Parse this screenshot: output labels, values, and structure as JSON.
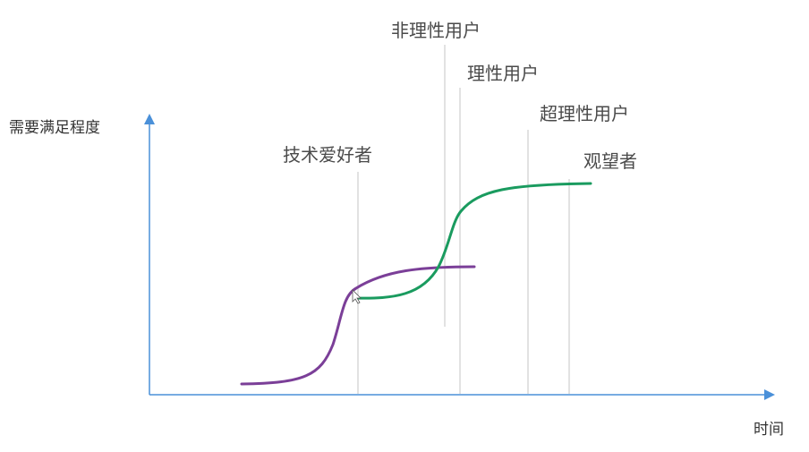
{
  "axes": {
    "y_label": "需要满足程度",
    "x_label": "时间"
  },
  "segments": [
    {
      "label": "技术爱好者"
    },
    {
      "label": "非理性用户"
    },
    {
      "label": "理性用户"
    },
    {
      "label": "超理性用户"
    },
    {
      "label": "观望者"
    }
  ],
  "colors": {
    "curve_early": "#7b3f98",
    "curve_late": "#1a9b5f",
    "axis": "#4a90d9",
    "divider": "#d8d8d8",
    "text": "#4a4a4a"
  }
}
